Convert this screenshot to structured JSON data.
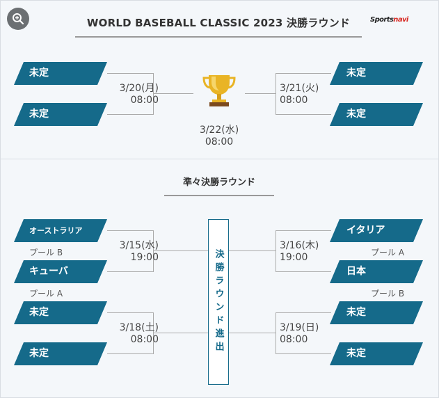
{
  "header": {
    "title": "WORLD BASEBALL CLASSIC 2023 決勝ラウンド",
    "logo_main": "Sports",
    "logo_accent": "navi"
  },
  "final": {
    "left_slots": [
      "未定",
      "未定"
    ],
    "left_date": "3/20(月)",
    "left_time": "08:00",
    "right_slots": [
      "未定",
      "未定"
    ],
    "right_date": "3/21(火)",
    "right_time": "08:00",
    "final_date": "3/22(水)",
    "final_time": "08:00"
  },
  "quarterfinal": {
    "title": "準々決勝ラウンド",
    "advance_label": "決勝ラウンド進出",
    "left_top": {
      "teams": [
        "オーストラリア",
        "キューバ"
      ],
      "pools": [
        "プール B",
        "プール A"
      ],
      "date": "3/15(水)",
      "time": "19:00"
    },
    "left_bottom": {
      "teams": [
        "未定",
        "未定"
      ],
      "date": "3/18(土)",
      "time": "08:00"
    },
    "right_top": {
      "teams": [
        "イタリア",
        "日本"
      ],
      "pools": [
        "プール A",
        "プール B"
      ],
      "date": "3/16(木)",
      "time": "19:00"
    },
    "right_bottom": {
      "teams": [
        "未定",
        "未定"
      ],
      "date": "3/19(日)",
      "time": "08:00"
    }
  },
  "colors": {
    "team_bg": "#156a8a",
    "line": "#aaaaaa"
  },
  "icons": {
    "zoom": "zoom-in-icon",
    "trophy": "trophy-icon"
  }
}
